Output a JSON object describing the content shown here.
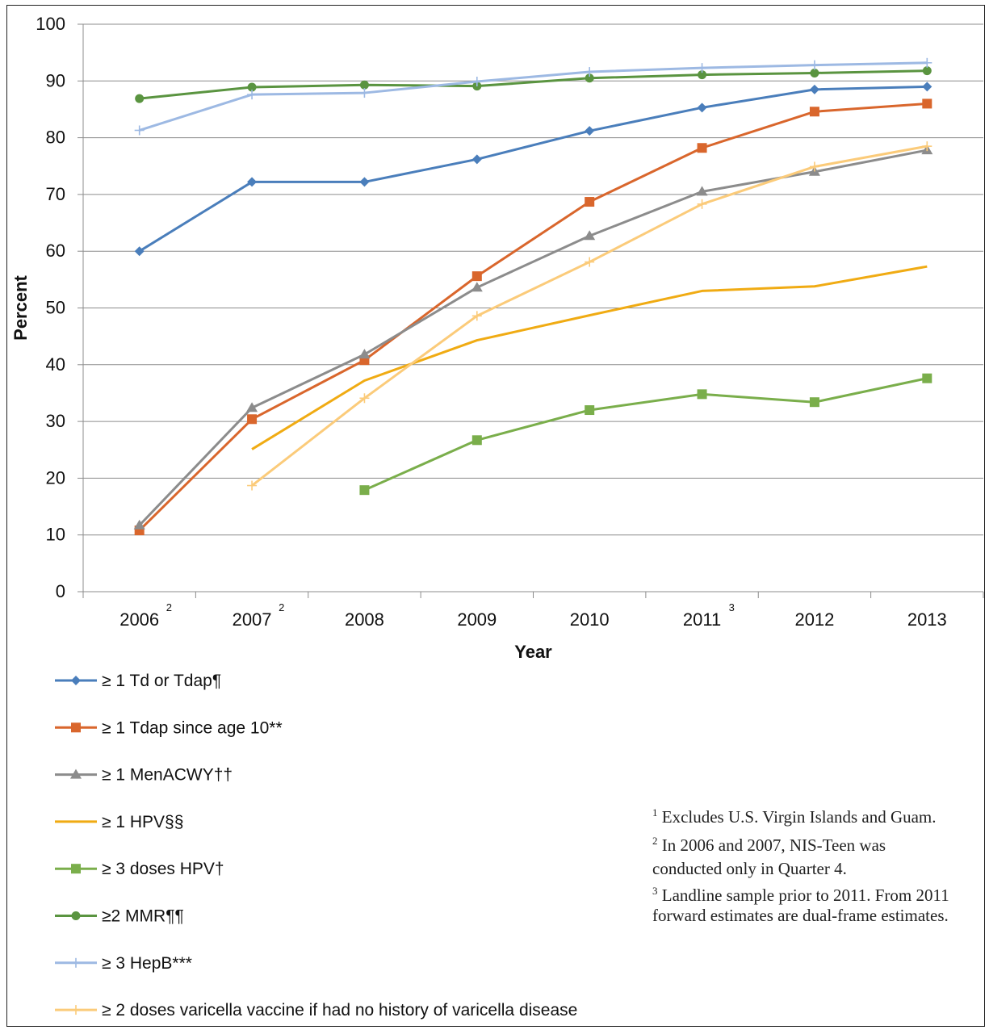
{
  "chart_data": {
    "type": "line",
    "title": "",
    "xlabel": "Year",
    "ylabel": "Percent",
    "ylim": [
      0,
      100
    ],
    "yticks": [
      0,
      10,
      20,
      30,
      40,
      50,
      60,
      70,
      80,
      90,
      100
    ],
    "grid": true,
    "legend_position": "bottom-left",
    "categories": [
      "2006",
      "2007",
      "2008",
      "2009",
      "2010",
      "2011",
      "2012",
      "2013"
    ],
    "category_superscripts": [
      "2",
      "2",
      "",
      "",
      "",
      "3",
      "",
      ""
    ],
    "series": [
      {
        "name": "≥ 1 Td or Tdap¶",
        "color": "#4a7ebb",
        "marker": "diamond",
        "values": [
          60,
          72.2,
          72.2,
          76.2,
          81.2,
          85.3,
          88.5,
          89.0
        ]
      },
      {
        "name": "≥ 1 Tdap since age 10**",
        "color": "#d9662c",
        "marker": "square",
        "values": [
          10.8,
          30.4,
          40.8,
          55.6,
          68.7,
          78.2,
          84.6,
          86.0
        ]
      },
      {
        "name": "≥ 1 MenACWY††",
        "color": "#8c8c8c",
        "marker": "triangle",
        "values": [
          11.7,
          32.4,
          41.8,
          53.6,
          62.7,
          70.5,
          74.0,
          77.8
        ]
      },
      {
        "name": "≥ 1 HPV§§",
        "color": "#f0ab13",
        "marker": "none",
        "values": [
          null,
          25.1,
          37.2,
          44.3,
          48.7,
          53.0,
          53.8,
          57.3
        ]
      },
      {
        "name": "≥ 3 doses HPV†",
        "color": "#7aae4b",
        "marker": "square",
        "values": [
          null,
          null,
          17.9,
          26.7,
          32.0,
          34.8,
          33.4,
          37.6
        ]
      },
      {
        "name": "≥2 MMR¶¶",
        "color": "#5a9440",
        "marker": "circle",
        "values": [
          86.9,
          88.9,
          89.3,
          89.1,
          90.5,
          91.1,
          91.4,
          91.8
        ]
      },
      {
        "name": "≥ 3 HepB***",
        "color": "#9db9e3",
        "marker": "plus",
        "values": [
          81.3,
          87.6,
          87.9,
          89.9,
          91.6,
          92.3,
          92.8,
          93.2
        ]
      },
      {
        "name": "≥ 2 doses varicella vaccine if had no history of varicella disease",
        "color": "#fbcb7a",
        "marker": "plus",
        "values": [
          null,
          18.7,
          34.1,
          48.6,
          58.1,
          68.3,
          74.9,
          78.5
        ]
      }
    ]
  },
  "notes": {
    "n1_sup": "1",
    "n1_text": " Excludes U.S. Virgin Islands and Guam.",
    "n2_sup": "2",
    "n2_text": " In 2006 and 2007, NIS-Teen was conducted only in Quarter 4.",
    "n3_sup": "3",
    "n3_text": " Landline sample prior to 2011. From 2011 forward estimates are dual-frame estimates."
  }
}
